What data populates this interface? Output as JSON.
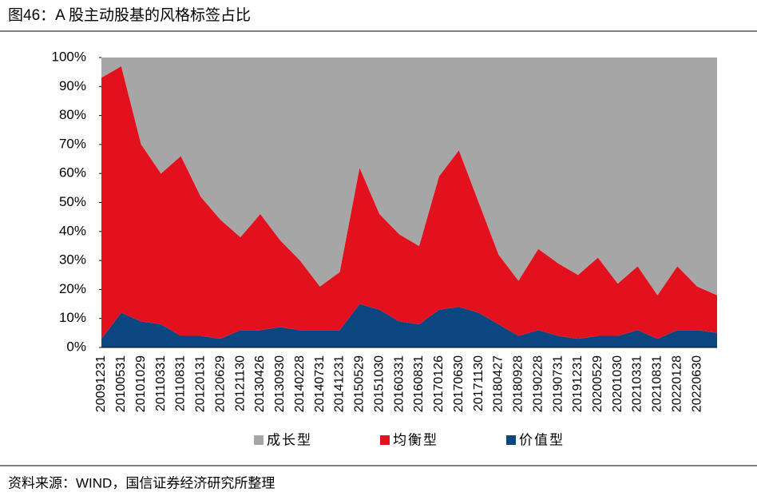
{
  "title": "图46：A 股主动股基的风格标签占比",
  "source": "资料来源：WIND，国信证券经济研究所整理",
  "chart_data": {
    "type": "stacked_area",
    "categories": [
      "20091231",
      "20100531",
      "20101029",
      "20110331",
      "20110831",
      "20120131",
      "20120629",
      "20121130",
      "20130426",
      "20130930",
      "20140228",
      "20140731",
      "20141231",
      "20150529",
      "20151030",
      "20160331",
      "20160831",
      "20170126",
      "20170630",
      "20171130",
      "20180427",
      "20180928",
      "20190228",
      "20190731",
      "20191231",
      "20200529",
      "20201030",
      "20210331",
      "20210831",
      "20220128",
      "20220630",
      null
    ],
    "series": [
      {
        "name": "价值型",
        "color": "#0b4680",
        "values": [
          3,
          12,
          9,
          8,
          4,
          4,
          3,
          6,
          6,
          7,
          6,
          6,
          6,
          15,
          13,
          9,
          8,
          13,
          14,
          12,
          8,
          4,
          6,
          4,
          3,
          4,
          4,
          6,
          3,
          6,
          6,
          5
        ]
      },
      {
        "name": "均衡型",
        "color": "#e3101d",
        "values": [
          90,
          85,
          61,
          52,
          62,
          48,
          41,
          32,
          40,
          30,
          24,
          15,
          20,
          47,
          33,
          30,
          27,
          46,
          54,
          38,
          24,
          19,
          28,
          25,
          22,
          27,
          18,
          22,
          15,
          22,
          15,
          13
        ]
      },
      {
        "name": "成长型",
        "color": "#a6a6a6",
        "values": [
          7,
          3,
          30,
          40,
          34,
          48,
          56,
          62,
          54,
          63,
          70,
          79,
          74,
          38,
          54,
          61,
          65,
          41,
          32,
          50,
          68,
          77,
          66,
          71,
          75,
          69,
          78,
          72,
          82,
          72,
          79,
          82
        ]
      }
    ],
    "legend_order": [
      2,
      1,
      0
    ],
    "ylim": [
      0,
      100
    ],
    "yticks": [
      {
        "value": 0,
        "label": "0%"
      },
      {
        "value": 10,
        "label": "10%"
      },
      {
        "value": 20,
        "label": "20%"
      },
      {
        "value": 30,
        "label": "30%"
      },
      {
        "value": 40,
        "label": "40%"
      },
      {
        "value": 50,
        "label": "50%"
      },
      {
        "value": 60,
        "label": "60%"
      },
      {
        "value": 70,
        "label": "70%"
      },
      {
        "value": 80,
        "label": "80%"
      },
      {
        "value": 90,
        "label": "90%"
      },
      {
        "value": 100,
        "label": "100%"
      }
    ]
  }
}
